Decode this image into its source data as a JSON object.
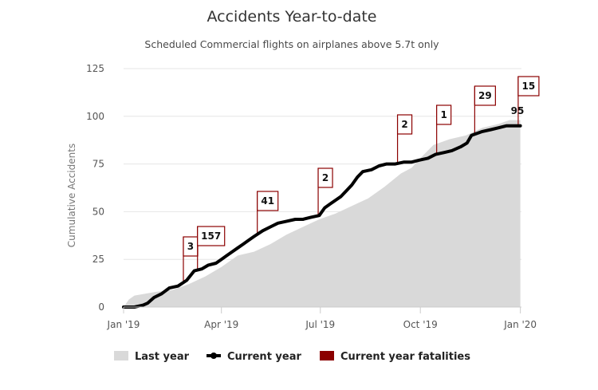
{
  "chart_data": {
    "type": "area",
    "title": "Accidents Year-to-date",
    "subtitle": "Scheduled Commercial flights on airplanes above 5.7t only",
    "ylabel": "Cumulative Accidents",
    "xlabel": "",
    "ylim": [
      0,
      125
    ],
    "yticks": [
      "0",
      "25",
      "50",
      "75",
      "100",
      "125"
    ],
    "xlim": [
      0,
      366
    ],
    "xticks": [
      {
        "label": "Jan '19",
        "day": 0
      },
      {
        "label": "Apr '19",
        "day": 90
      },
      {
        "label": "Jul '19",
        "day": 181
      },
      {
        "label": "Oct '19",
        "day": 273
      },
      {
        "label": "Jan '20",
        "day": 365
      }
    ],
    "grid": true,
    "legend_position": "bottom",
    "series": [
      {
        "name": "Last year",
        "color": "#d9d9d9",
        "x": [
          0,
          5,
          10,
          20,
          30,
          45,
          60,
          75,
          90,
          105,
          120,
          135,
          150,
          165,
          180,
          195,
          210,
          225,
          240,
          255,
          265,
          273,
          285,
          300,
          315,
          330,
          345,
          355,
          365
        ],
        "y": [
          0,
          4,
          6,
          7,
          8,
          9,
          12,
          16,
          21,
          27,
          29,
          33,
          38,
          42,
          46,
          49,
          53,
          57,
          63,
          70,
          73,
          78,
          85,
          88,
          90,
          94,
          96,
          98,
          98
        ]
      },
      {
        "name": "Current year",
        "color": "#000000",
        "x": [
          0,
          10,
          18,
          22,
          28,
          35,
          42,
          50,
          58,
          65,
          72,
          78,
          85,
          90,
          95,
          100,
          105,
          110,
          115,
          120,
          128,
          135,
          142,
          150,
          158,
          165,
          172,
          180,
          185,
          190,
          195,
          200,
          205,
          210,
          215,
          220,
          228,
          235,
          242,
          250,
          258,
          265,
          272,
          280,
          287,
          295,
          302,
          310,
          316,
          320,
          330,
          338,
          345,
          352,
          360,
          365
        ],
        "y": [
          0,
          0,
          1,
          2,
          5,
          7,
          10,
          11,
          14,
          19,
          20,
          22,
          23,
          25,
          27,
          29,
          31,
          33,
          35,
          37,
          40,
          42,
          44,
          45,
          46,
          46,
          47,
          48,
          52,
          54,
          56,
          58,
          61,
          64,
          68,
          71,
          72,
          74,
          75,
          75,
          76,
          76,
          77,
          78,
          80,
          81,
          82,
          84,
          86,
          90,
          92,
          93,
          94,
          95,
          95,
          95
        ]
      },
      {
        "name": "Current year fatalities",
        "color": "#8b0000",
        "markers": [
          {
            "day": 55,
            "label": "3"
          },
          {
            "day": 68,
            "label": "157"
          },
          {
            "day": 123,
            "label": "41"
          },
          {
            "day": 179,
            "label": "2"
          },
          {
            "day": 252,
            "label": "2"
          },
          {
            "day": 288,
            "label": "1"
          },
          {
            "day": 323,
            "label": "29"
          },
          {
            "day": 363,
            "label": "15"
          }
        ]
      }
    ],
    "end_label": "95"
  },
  "legend": {
    "last_year": "Last year",
    "current_year": "Current year",
    "fatalities": "Current year fatalities"
  }
}
